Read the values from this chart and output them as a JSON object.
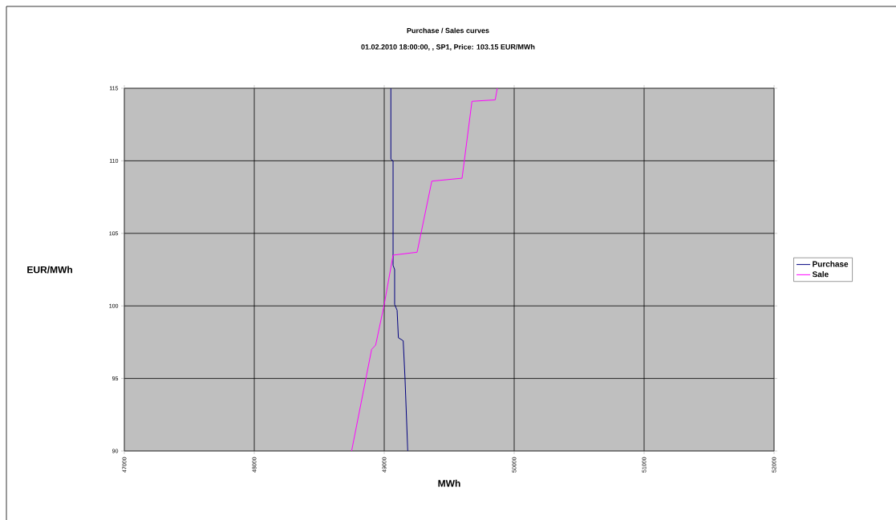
{
  "chart_data": {
    "type": "line",
    "title": "Purchase / Sales curves",
    "subtitle": "01.02.2010 18:00:00, , SP1, Price: 103.15 EUR/MWh",
    "xlabel": "MWh",
    "ylabel": "EUR/MWh",
    "xlim": [
      47000,
      52000
    ],
    "xticks": [
      47000,
      48000,
      49000,
      50000,
      51000,
      52000
    ],
    "ylim": [
      90,
      115
    ],
    "yticks": [
      90,
      95,
      100,
      105,
      110,
      115
    ],
    "grid": true,
    "legend": "right",
    "marker": "none",
    "series": [
      {
        "name": "Purchase",
        "color": "#000080",
        "x": [
          49051,
          49051,
          49068,
          49068,
          49080,
          49080,
          49099,
          49109,
          49146,
          49160,
          49181
        ],
        "values": [
          115,
          110.1,
          110,
          102.8,
          102.5,
          100.1,
          99.7,
          97.8,
          97.6,
          95,
          90
        ]
      },
      {
        "name": "Sale",
        "color": "#ff00ff",
        "x": [
          48749,
          48903,
          48934,
          49000,
          49068,
          49253,
          49366,
          49599,
          49675,
          49854,
          49870
        ],
        "values": [
          90,
          97,
          97.3,
          100.1,
          103.5,
          103.7,
          108.6,
          108.8,
          114.1,
          114.2,
          115
        ]
      }
    ]
  }
}
